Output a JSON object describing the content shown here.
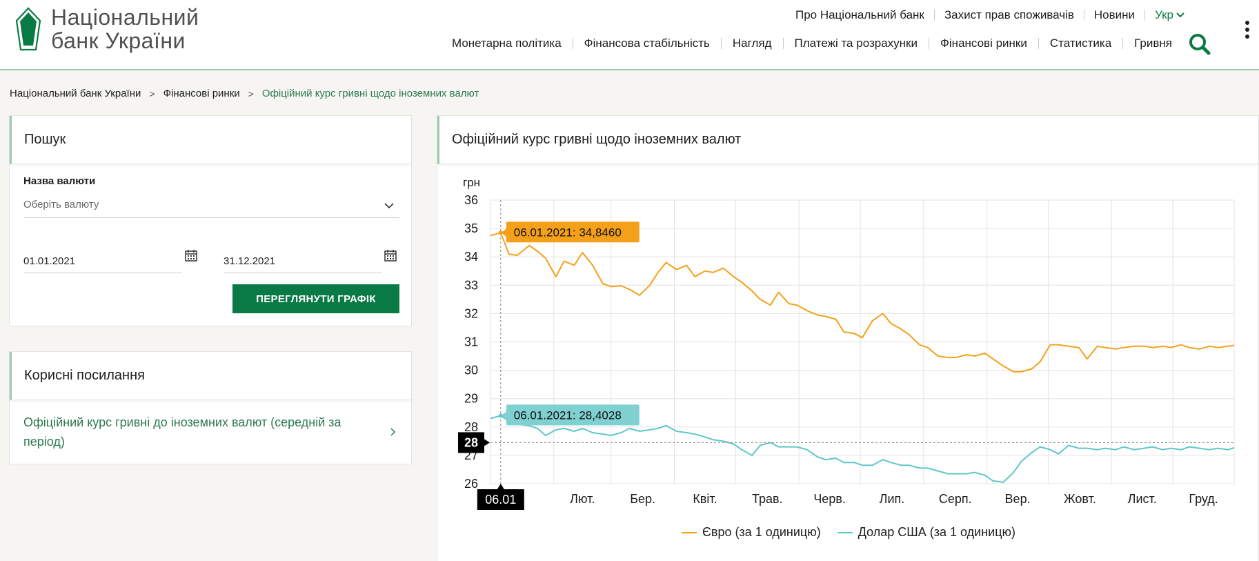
{
  "header": {
    "logo_line1": "Національний",
    "logo_line2": "банк України",
    "top_nav": [
      "Про Національний банк",
      "Захист прав споживачів",
      "Новини"
    ],
    "lang": "Укр",
    "main_nav": [
      "Монетарна політика",
      "Фінансова стабільність",
      "Нагляд",
      "Платежі та розрахунки",
      "Фінансові ринки",
      "Статистика",
      "Гривня"
    ],
    "accent": "#0a7a44"
  },
  "breadcrumb": [
    "Національний банк України",
    "Фінансові ринки",
    "Офіційний курс гривні щодо іноземних валют"
  ],
  "search": {
    "title": "Пошук",
    "currency_label": "Назва валюти",
    "currency_placeholder": "Оберіть валюту",
    "date_from": "01.01.2021",
    "date_to": "31.12.2021",
    "button": "ПЕРЕГЛЯНУТИ ГРАФІК"
  },
  "links": {
    "title": "Корисні посилання",
    "item": "Офіційний курс гривні до іноземних валют (середній за період)"
  },
  "chart": {
    "title": "Офіційний курс гривні щодо іноземних валют"
  },
  "chart_data": {
    "type": "line",
    "ylabel": "грн",
    "ylim": [
      26,
      36
    ],
    "yticks": [
      26,
      27,
      28,
      29,
      30,
      31,
      32,
      33,
      34,
      35,
      36
    ],
    "month_labels": [
      "Лют.",
      "Бер.",
      "Квіт.",
      "Трав.",
      "Черв.",
      "Лип.",
      "Серп.",
      "Вер.",
      "Жовт.",
      "Лист.",
      "Груд."
    ],
    "x_range": [
      "01.01.2021",
      "31.12.2021"
    ],
    "crosshair": {
      "x_label": "06.01",
      "y_label": "28"
    },
    "tooltips": [
      "06.01.2021: 34,8460",
      "06.01.2021: 28,4028"
    ],
    "series": [
      {
        "name": "Євро (за 1 одиницю)",
        "color": "#f5a01a",
        "x": [
          0,
          5,
          9,
          13,
          19,
          23,
          27,
          32,
          36,
          41,
          45,
          50,
          55,
          59,
          64,
          68,
          73,
          78,
          82,
          86,
          91,
          96,
          100,
          105,
          109,
          114,
          119,
          123,
          128,
          132,
          137,
          141,
          146,
          150,
          155,
          160,
          164,
          169,
          173,
          178,
          182,
          187,
          192,
          196,
          201,
          205,
          210,
          214,
          219,
          224,
          228,
          233,
          237,
          242,
          246,
          251,
          256,
          260,
          265,
          269,
          274,
          278,
          283,
          288,
          292,
          297,
          301,
          306,
          310,
          315,
          320,
          324,
          329,
          333,
          338,
          342,
          347,
          352,
          356,
          361,
          364
        ],
        "values": [
          34.75,
          34.85,
          34.1,
          34.05,
          34.4,
          34.2,
          33.95,
          33.3,
          33.85,
          33.7,
          34.15,
          33.7,
          33.05,
          32.95,
          32.98,
          32.85,
          32.65,
          33.0,
          33.45,
          33.8,
          33.55,
          33.7,
          33.3,
          33.5,
          33.45,
          33.6,
          33.3,
          33.1,
          32.8,
          32.5,
          32.3,
          32.75,
          32.35,
          32.3,
          32.1,
          31.95,
          31.9,
          31.8,
          31.35,
          31.3,
          31.15,
          31.75,
          32.0,
          31.65,
          31.45,
          31.25,
          30.9,
          30.8,
          30.5,
          30.45,
          30.45,
          30.55,
          30.5,
          30.6,
          30.4,
          30.15,
          29.95,
          29.95,
          30.05,
          30.3,
          30.9,
          30.9,
          30.85,
          30.8,
          30.4,
          30.85,
          30.8,
          30.75,
          30.8,
          30.85,
          30.85,
          30.8,
          30.85,
          30.8,
          30.9,
          30.8,
          30.75,
          30.85,
          30.8,
          30.85,
          30.88
        ]
      },
      {
        "name": "Долар США (за 1 одиницю)",
        "color": "#5fc7c7",
        "x": [
          0,
          5,
          9,
          13,
          19,
          23,
          27,
          32,
          36,
          41,
          45,
          50,
          55,
          59,
          64,
          68,
          73,
          78,
          82,
          86,
          91,
          96,
          100,
          105,
          109,
          114,
          119,
          123,
          128,
          132,
          137,
          141,
          146,
          150,
          155,
          160,
          164,
          169,
          173,
          178,
          182,
          187,
          192,
          196,
          201,
          205,
          210,
          214,
          219,
          224,
          228,
          233,
          237,
          242,
          246,
          251,
          256,
          260,
          265,
          269,
          274,
          278,
          283,
          288,
          292,
          297,
          301,
          306,
          310,
          315,
          320,
          324,
          329,
          333,
          338,
          342,
          347,
          352,
          356,
          361,
          364
        ],
        "values": [
          28.3,
          28.4,
          28.2,
          28.1,
          28.05,
          27.95,
          27.7,
          27.9,
          27.95,
          27.85,
          27.95,
          27.8,
          27.75,
          27.7,
          27.8,
          27.95,
          27.85,
          27.9,
          27.95,
          28.05,
          27.85,
          27.8,
          27.75,
          27.65,
          27.55,
          27.5,
          27.4,
          27.2,
          27.0,
          27.35,
          27.45,
          27.3,
          27.3,
          27.3,
          27.2,
          26.95,
          26.85,
          26.9,
          26.75,
          26.75,
          26.65,
          26.65,
          26.85,
          26.75,
          26.65,
          26.65,
          26.55,
          26.55,
          26.45,
          26.35,
          26.35,
          26.35,
          26.4,
          26.3,
          26.1,
          26.05,
          26.4,
          26.8,
          27.1,
          27.3,
          27.2,
          27.05,
          27.35,
          27.25,
          27.25,
          27.2,
          27.25,
          27.2,
          27.3,
          27.2,
          27.25,
          27.3,
          27.2,
          27.25,
          27.2,
          27.3,
          27.25,
          27.2,
          27.25,
          27.2,
          27.27
        ]
      }
    ],
    "grid": true,
    "legend_position": "bottom"
  }
}
